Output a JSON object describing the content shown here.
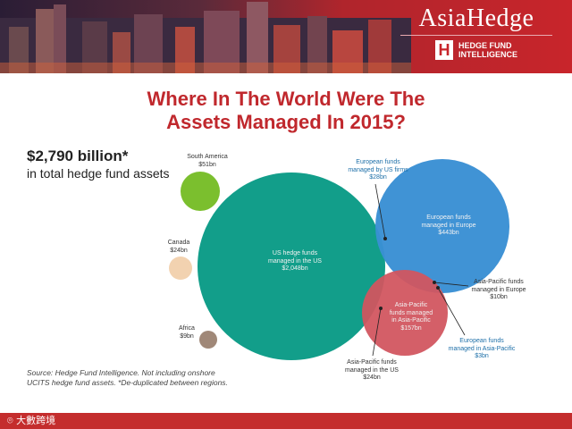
{
  "header": {
    "brand": "AsiaHedge",
    "brand_sub_line1": "HEDGE FUND",
    "brand_sub_line2": "INTELLIGENCE"
  },
  "title_line1": "Where In The World Were The",
  "title_line2": "Assets Managed In 2015?",
  "total": {
    "value": "$2,790 billion*",
    "label": "in total hedge fund assets"
  },
  "chart_data": {
    "type": "bubble",
    "title": "Where In The World Were The Assets Managed In 2015?",
    "unit": "$bn",
    "total_bn": 2790,
    "regions": [
      {
        "name": "South America",
        "value": 51,
        "value_label": "$51bn",
        "color": "#7bbf2e"
      },
      {
        "name": "Canada",
        "value": 24,
        "value_label": "$24bn",
        "color": "#f2d2b0"
      },
      {
        "name": "Africa",
        "value": 9,
        "value_label": "$9bn",
        "color": "#a08878"
      }
    ],
    "managers": [
      {
        "name": "US hedge funds managed in the US",
        "value": 2048,
        "value_label": "$2,048bn",
        "color": "#129e8a"
      },
      {
        "name": "European funds managed in Europe",
        "value": 443,
        "value_label": "$443bn",
        "color": "#3a8fd4"
      },
      {
        "name": "Asia-Pacific funds managed in Asia-Pacific",
        "value": 157,
        "value_label": "$157bn",
        "color": "#d1555f"
      }
    ],
    "overlaps": [
      {
        "name": "European funds managed by US firms",
        "value": 28,
        "value_label": "$28bn"
      },
      {
        "name": "Asia-Pacific funds managed in Europe",
        "value": 10,
        "value_label": "$10bn"
      },
      {
        "name": "European funds managed in Asia-Pacific",
        "value": 3,
        "value_label": "$3bn"
      },
      {
        "name": "Asia-Pacific funds managed in the US",
        "value": 24,
        "value_label": "$24bn"
      }
    ]
  },
  "labels": {
    "south_america": {
      "name": "South America",
      "value": "$51bn"
    },
    "canada": {
      "name": "Canada",
      "value": "$24bn"
    },
    "africa": {
      "name": "Africa",
      "value": "$9bn"
    },
    "us": {
      "l1": "US hedge funds",
      "l2": "managed in the US",
      "l3": "$2,048bn"
    },
    "eu": {
      "l1": "European funds",
      "l2": "managed in Europe",
      "l3": "$443bn"
    },
    "ap": {
      "l1": "Asia-Pacific",
      "l2": "funds managed",
      "l3": "in Asia-Pacific",
      "l4": "$157bn"
    },
    "eu_us": {
      "l1": "European funds",
      "l2": "managed by US firms",
      "l3": "$28bn"
    },
    "ap_eu": {
      "l1": "Asia-Pacific funds",
      "l2": "managed in Europe",
      "l3": "$10bn"
    },
    "eu_ap": {
      "l1": "European funds",
      "l2": "managed in Asia-Pacific",
      "l3": "$3bn"
    },
    "ap_us": {
      "l1": "Asia-Pacific funds",
      "l2": "managed in the US",
      "l3": "$24bn"
    }
  },
  "source_line1": "Source: Hedge Fund Intelligence. Not including onshore",
  "source_line2": "UCITS hedge fund assets. *De-duplicated between regions.",
  "watermark": "大數跨境"
}
